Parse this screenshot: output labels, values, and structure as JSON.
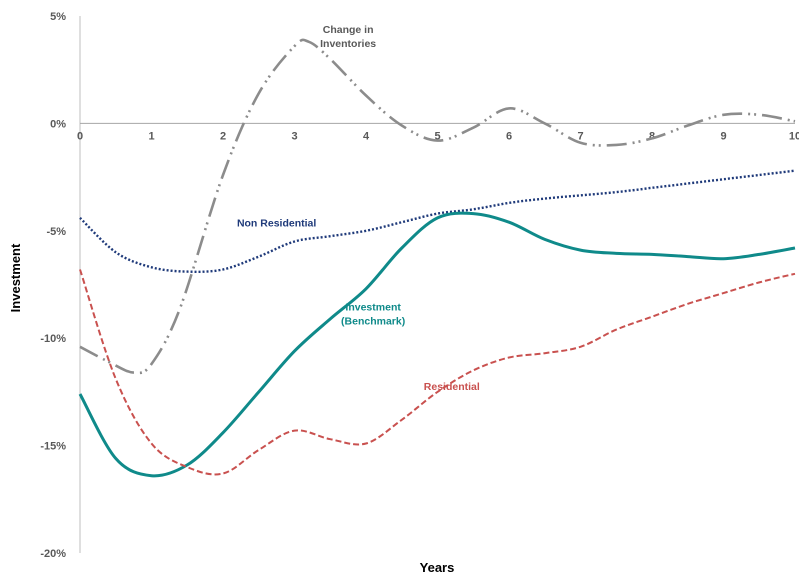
{
  "chart_data": {
    "type": "line",
    "xlabel": "Years",
    "ylabel": "Investment",
    "xlim": [
      0,
      10
    ],
    "ylim": [
      -20,
      5
    ],
    "x_ticks": [
      "0",
      "1",
      "2",
      "3",
      "4",
      "5",
      "6",
      "7",
      "8",
      "9",
      "10"
    ],
    "y_ticks": [
      "5%",
      "0%",
      "-5%",
      "-10%",
      "-15%",
      "-20%"
    ],
    "grid": false,
    "legend": "none",
    "series": [
      {
        "name": "Change in Inventories",
        "color": "#8c8c8c",
        "style": "dash-dot-dot",
        "x": [
          0,
          0.4,
          0.75,
          1.0,
          1.4,
          2.0,
          2.5,
          3.0,
          3.2,
          3.5,
          4.0,
          4.5,
          5.0,
          5.5,
          6.0,
          6.5,
          7.0,
          7.5,
          8.0,
          8.5,
          9.0,
          9.5,
          10.0
        ],
        "y": [
          -10.4,
          -11.1,
          -11.6,
          -11.2,
          -8.6,
          -2.4,
          1.4,
          3.6,
          3.8,
          3.0,
          1.3,
          -0.1,
          -0.8,
          -0.2,
          0.7,
          0.0,
          -0.9,
          -1.0,
          -0.7,
          -0.1,
          0.4,
          0.4,
          0.1
        ]
      },
      {
        "name": "Non Residential",
        "color": "#1f3a7a",
        "style": "dotted",
        "x": [
          0,
          0.5,
          1.0,
          1.5,
          2.0,
          2.5,
          3.0,
          3.5,
          4.0,
          4.5,
          5.0,
          5.5,
          6.0,
          6.5,
          7.0,
          7.5,
          8.0,
          8.5,
          9.0,
          9.5,
          10.0
        ],
        "y": [
          -4.4,
          -6.0,
          -6.7,
          -6.9,
          -6.8,
          -6.2,
          -5.5,
          -5.25,
          -5.0,
          -4.6,
          -4.2,
          -4.0,
          -3.7,
          -3.5,
          -3.35,
          -3.2,
          -3.0,
          -2.8,
          -2.6,
          -2.4,
          -2.2
        ]
      },
      {
        "name": "Investment (Benchmark)",
        "color": "#0f8a8a",
        "style": "solid",
        "x": [
          0,
          0.5,
          1.0,
          1.5,
          2.0,
          2.5,
          3.0,
          3.5,
          4.0,
          4.5,
          5.0,
          5.5,
          6.0,
          6.5,
          7.0,
          7.5,
          8.0,
          8.5,
          9.0,
          9.5,
          10.0
        ],
        "y": [
          -12.6,
          -15.6,
          -16.4,
          -15.9,
          -14.4,
          -12.5,
          -10.6,
          -9.1,
          -7.7,
          -5.8,
          -4.4,
          -4.2,
          -4.6,
          -5.4,
          -5.9,
          -6.05,
          -6.1,
          -6.2,
          -6.3,
          -6.1,
          -5.8
        ]
      },
      {
        "name": "Residential",
        "color": "#c9514f",
        "style": "dashed",
        "x": [
          0,
          0.5,
          1.0,
          1.5,
          2.0,
          2.5,
          3.0,
          3.5,
          4.0,
          4.5,
          5.0,
          5.5,
          6.0,
          6.5,
          7.0,
          7.5,
          8.0,
          8.5,
          9.0,
          9.5,
          10.0
        ],
        "y": [
          -6.8,
          -11.9,
          -14.9,
          -16.0,
          -16.3,
          -15.2,
          -14.3,
          -14.7,
          -14.9,
          -13.8,
          -12.5,
          -11.5,
          -10.9,
          -10.7,
          -10.4,
          -9.6,
          -9.0,
          -8.4,
          -7.9,
          -7.4,
          -7.0
        ]
      }
    ],
    "annotations": [
      {
        "lines": [
          "Change in",
          "Inventories"
        ],
        "color": "#595959",
        "x": 3.75,
        "y": 4.2
      },
      {
        "lines": [
          "Non Residential"
        ],
        "color": "#1f3a7a",
        "x": 2.75,
        "y": -4.8
      },
      {
        "lines": [
          "Investment",
          "(Benchmark)"
        ],
        "color": "#0f8a8a",
        "x": 4.1,
        "y": -8.7
      },
      {
        "lines": [
          "Residential"
        ],
        "color": "#c9514f",
        "x": 5.2,
        "y": -12.4
      }
    ]
  }
}
